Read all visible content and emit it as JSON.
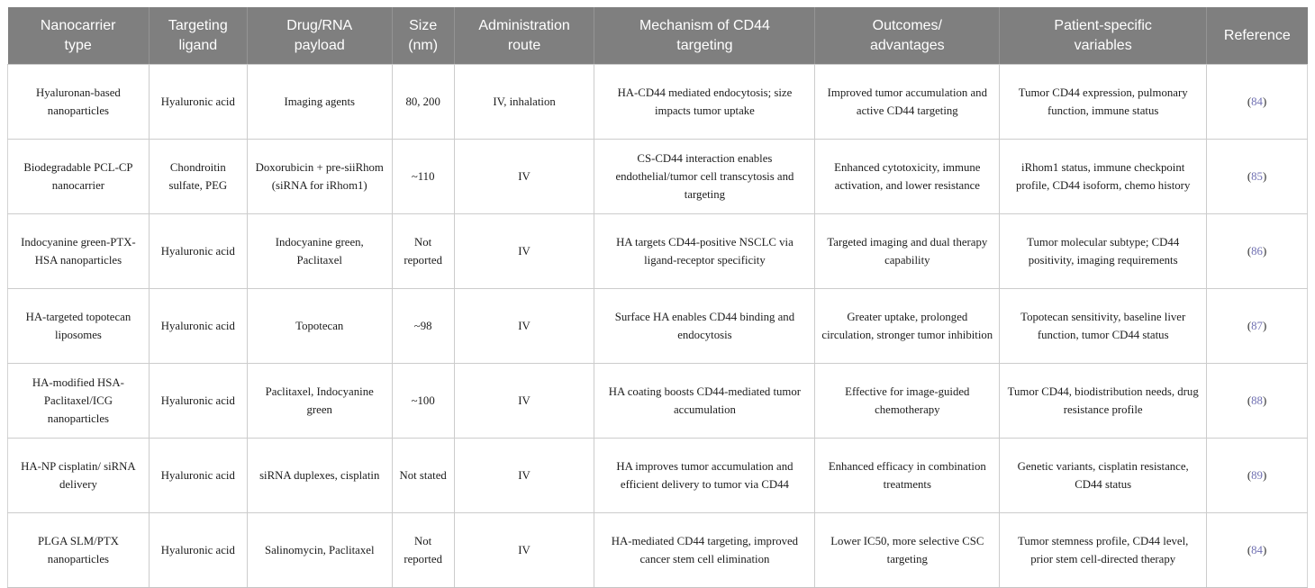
{
  "colors": {
    "header_bg": "#7f7f7f",
    "header_text": "#ffffff",
    "body_text": "#1c1c1c",
    "grid_border": "#cccccc",
    "reference_accent": "#7070b2"
  },
  "table": {
    "columns": [
      {
        "id": "nanocarrier_type",
        "lines": [
          "Nanocarrier",
          "type"
        ]
      },
      {
        "id": "targeting_ligand",
        "lines": [
          "Targeting",
          "ligand"
        ]
      },
      {
        "id": "payload",
        "lines": [
          "Drug/RNA",
          "payload"
        ]
      },
      {
        "id": "size",
        "lines": [
          "Size",
          "(nm)"
        ]
      },
      {
        "id": "route",
        "lines": [
          "Administration",
          "route"
        ]
      },
      {
        "id": "mechanism",
        "lines": [
          "Mechanism of CD44",
          "targeting"
        ]
      },
      {
        "id": "outcomes",
        "lines": [
          "Outcomes/",
          "advantages"
        ]
      },
      {
        "id": "patient_variables",
        "lines": [
          "Patient-specific",
          "variables"
        ]
      },
      {
        "id": "reference",
        "lines": [
          "Reference"
        ]
      }
    ],
    "rows": [
      {
        "nanocarrier_type": "Hyaluronan-based nanoparticles",
        "targeting_ligand": "Hyaluronic acid",
        "payload": "Imaging agents",
        "size": "80, 200",
        "route": "IV, inhalation",
        "mechanism": "HA-CD44 mediated endocytosis; size impacts tumor uptake",
        "outcomes": "Improved tumor accumulation and active CD44 targeting",
        "patient_variables": "Tumor CD44 expression, pulmonary function, immune status",
        "reference": "84"
      },
      {
        "nanocarrier_type": "Biodegradable PCL-CP nanocarrier",
        "targeting_ligand": "Chondroitin sulfate, PEG",
        "payload": "Doxorubicin + pre-siiRhom (siRNA for iRhom1)",
        "size": "~110",
        "route": "IV",
        "mechanism": "CS-CD44 interaction enables endothelial/tumor cell transcytosis and targeting",
        "outcomes": "Enhanced cytotoxicity, immune activation, and lower resistance",
        "patient_variables": "iRhom1 status, immune checkpoint profile, CD44 isoform, chemo history",
        "reference": "85"
      },
      {
        "nanocarrier_type": "Indocyanine green-PTX-HSA nanoparticles",
        "targeting_ligand": "Hyaluronic acid",
        "payload": "Indocyanine green, Paclitaxel",
        "size": "Not reported",
        "route": "IV",
        "mechanism": "HA targets CD44-positive NSCLC via ligand-receptor specificity",
        "outcomes": "Targeted imaging and dual therapy capability",
        "patient_variables": "Tumor molecular subtype; CD44 positivity, imaging requirements",
        "reference": "86"
      },
      {
        "nanocarrier_type": "HA-targeted topotecan liposomes",
        "targeting_ligand": "Hyaluronic acid",
        "payload": "Topotecan",
        "size": "~98",
        "route": "IV",
        "mechanism": "Surface HA enables CD44 binding and endocytosis",
        "outcomes": "Greater uptake, prolonged circulation, stronger tumor inhibition",
        "patient_variables": "Topotecan sensitivity, baseline liver function, tumor CD44 status",
        "reference": "87"
      },
      {
        "nanocarrier_type": "HA-modified HSA-Paclitaxel/ICG nanoparticles",
        "targeting_ligand": "Hyaluronic acid",
        "payload": "Paclitaxel, Indocyanine green",
        "size": "~100",
        "route": "IV",
        "mechanism": "HA coating boosts CD44-mediated tumor accumulation",
        "outcomes": "Effective for image-guided chemotherapy",
        "patient_variables": "Tumor CD44, biodistribution needs, drug resistance profile",
        "reference": "88"
      },
      {
        "nanocarrier_type": "HA-NP cisplatin/ siRNA delivery",
        "targeting_ligand": "Hyaluronic acid",
        "payload": "siRNA duplexes, cisplatin",
        "size": "Not stated",
        "route": "IV",
        "mechanism": "HA improves tumor accumulation and efficient delivery to tumor via CD44",
        "outcomes": "Enhanced efficacy in combination treatments",
        "patient_variables": "Genetic variants, cisplatin resistance, CD44 status",
        "reference": "89"
      },
      {
        "nanocarrier_type": "PLGA SLM/PTX nanoparticles",
        "targeting_ligand": "Hyaluronic acid",
        "payload": "Salinomycin, Paclitaxel",
        "size": "Not reported",
        "route": "IV",
        "mechanism": "HA-mediated CD44 targeting, improved cancer stem cell elimination",
        "outcomes": "Lower IC50, more selective CSC targeting",
        "patient_variables": "Tumor stemness profile, CD44 level, prior stem cell-directed therapy",
        "reference": "84"
      }
    ]
  }
}
